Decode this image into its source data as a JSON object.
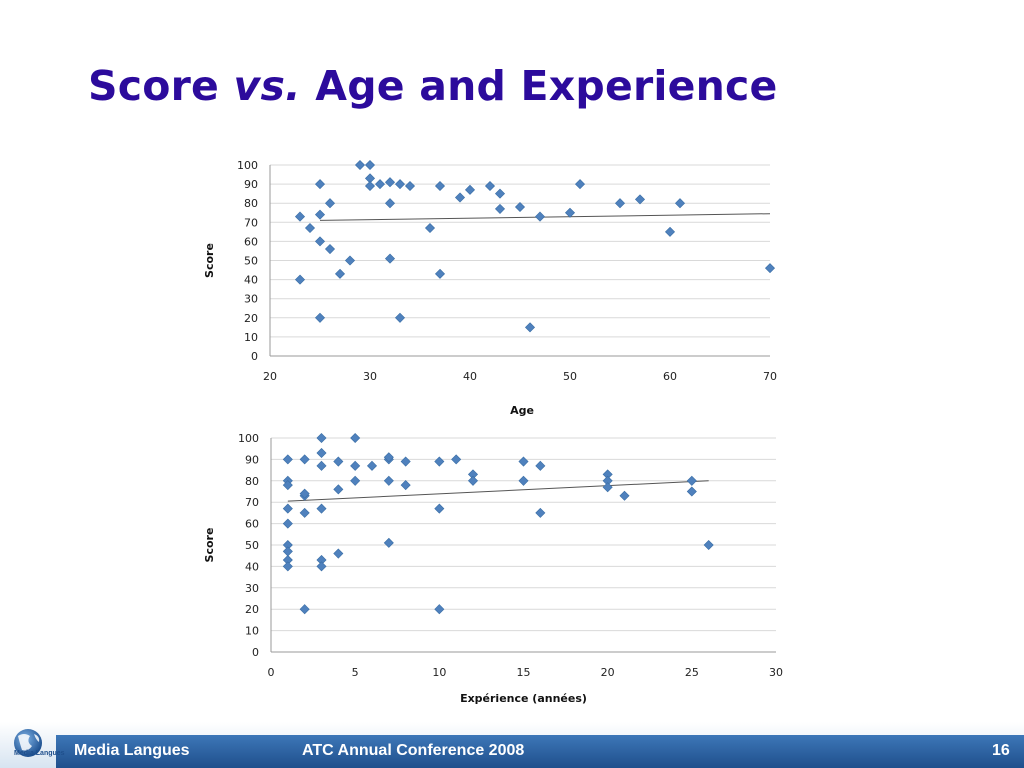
{
  "slide": {
    "title": {
      "part1": "Score ",
      "vs": "vs.",
      "part2": " Age and Experience"
    }
  },
  "colors": {
    "title": "#2c0b9c",
    "marker": "#4f81bd",
    "trendline": "#555555",
    "gridline": "#d9d9d9",
    "footer_band": "#2a5f9e"
  },
  "footer": {
    "left_label": "Media Langues",
    "center_label": "ATC Annual Conference 2008",
    "page_number": "16",
    "logo_text": "Media Langues",
    "logo_icon": "globe-icon"
  },
  "chart_data": [
    {
      "type": "scatter",
      "title": "",
      "xlabel": "Age",
      "ylabel": "Score",
      "xlim": [
        20,
        70
      ],
      "ylim": [
        0,
        100
      ],
      "xticks": [
        20,
        30,
        40,
        50,
        60,
        70
      ],
      "yticks": [
        0,
        10,
        20,
        30,
        40,
        50,
        60,
        70,
        80,
        90,
        100
      ],
      "grid": "horizontal",
      "trendline": {
        "from": [
          25,
          71
        ],
        "to": [
          70,
          74.5
        ]
      },
      "points": [
        [
          29,
          100
        ],
        [
          30,
          100
        ],
        [
          30,
          93
        ],
        [
          30,
          89
        ],
        [
          31,
          90
        ],
        [
          32,
          91
        ],
        [
          33,
          90
        ],
        [
          34,
          89
        ],
        [
          25,
          90
        ],
        [
          37,
          89
        ],
        [
          39,
          83
        ],
        [
          40,
          87
        ],
        [
          42,
          89
        ],
        [
          43,
          85
        ],
        [
          43,
          77
        ],
        [
          45,
          78
        ],
        [
          47,
          73
        ],
        [
          50,
          75
        ],
        [
          51,
          90
        ],
        [
          55,
          80
        ],
        [
          57,
          82
        ],
        [
          61,
          80
        ],
        [
          60,
          65
        ],
        [
          70,
          46
        ],
        [
          23,
          73
        ],
        [
          25,
          74
        ],
        [
          26,
          80
        ],
        [
          32,
          80
        ],
        [
          24,
          67
        ],
        [
          25,
          60
        ],
        [
          26,
          56
        ],
        [
          28,
          50
        ],
        [
          32,
          51
        ],
        [
          27,
          43
        ],
        [
          37,
          43
        ],
        [
          23,
          40
        ],
        [
          36,
          67
        ],
        [
          25,
          20
        ],
        [
          33,
          20
        ],
        [
          46,
          15
        ]
      ]
    },
    {
      "type": "scatter",
      "title": "",
      "xlabel": "Expérience (années)",
      "ylabel": "Score",
      "xlim": [
        0,
        30
      ],
      "ylim": [
        0,
        100
      ],
      "xticks": [
        0,
        5,
        10,
        15,
        20,
        25,
        30
      ],
      "yticks": [
        0,
        10,
        20,
        30,
        40,
        50,
        60,
        70,
        80,
        90,
        100
      ],
      "grid": "horizontal",
      "trendline": {
        "from": [
          1,
          70.5
        ],
        "to": [
          26,
          80
        ]
      },
      "points": [
        [
          3,
          100
        ],
        [
          5,
          100
        ],
        [
          3,
          93
        ],
        [
          1,
          90
        ],
        [
          2,
          90
        ],
        [
          3,
          87
        ],
        [
          4,
          89
        ],
        [
          5,
          87
        ],
        [
          6,
          87
        ],
        [
          7,
          90
        ],
        [
          7,
          91
        ],
        [
          8,
          89
        ],
        [
          10,
          89
        ],
        [
          11,
          90
        ],
        [
          12,
          83
        ],
        [
          12,
          80
        ],
        [
          15,
          89
        ],
        [
          16,
          87
        ],
        [
          15,
          80
        ],
        [
          16,
          65
        ],
        [
          20,
          83
        ],
        [
          20,
          80
        ],
        [
          20,
          77
        ],
        [
          21,
          73
        ],
        [
          25,
          80
        ],
        [
          25,
          75
        ],
        [
          26,
          50
        ],
        [
          1,
          80
        ],
        [
          1,
          78
        ],
        [
          2,
          73
        ],
        [
          2,
          74
        ],
        [
          2,
          65
        ],
        [
          1,
          67
        ],
        [
          1,
          60
        ],
        [
          3,
          67
        ],
        [
          4,
          76
        ],
        [
          5,
          80
        ],
        [
          7,
          80
        ],
        [
          8,
          78
        ],
        [
          10,
          67
        ],
        [
          1,
          50
        ],
        [
          1,
          47
        ],
        [
          1,
          43
        ],
        [
          1,
          40
        ],
        [
          3,
          43
        ],
        [
          3,
          40
        ],
        [
          4,
          46
        ],
        [
          7,
          51
        ],
        [
          2,
          20
        ],
        [
          10,
          20
        ]
      ]
    }
  ]
}
